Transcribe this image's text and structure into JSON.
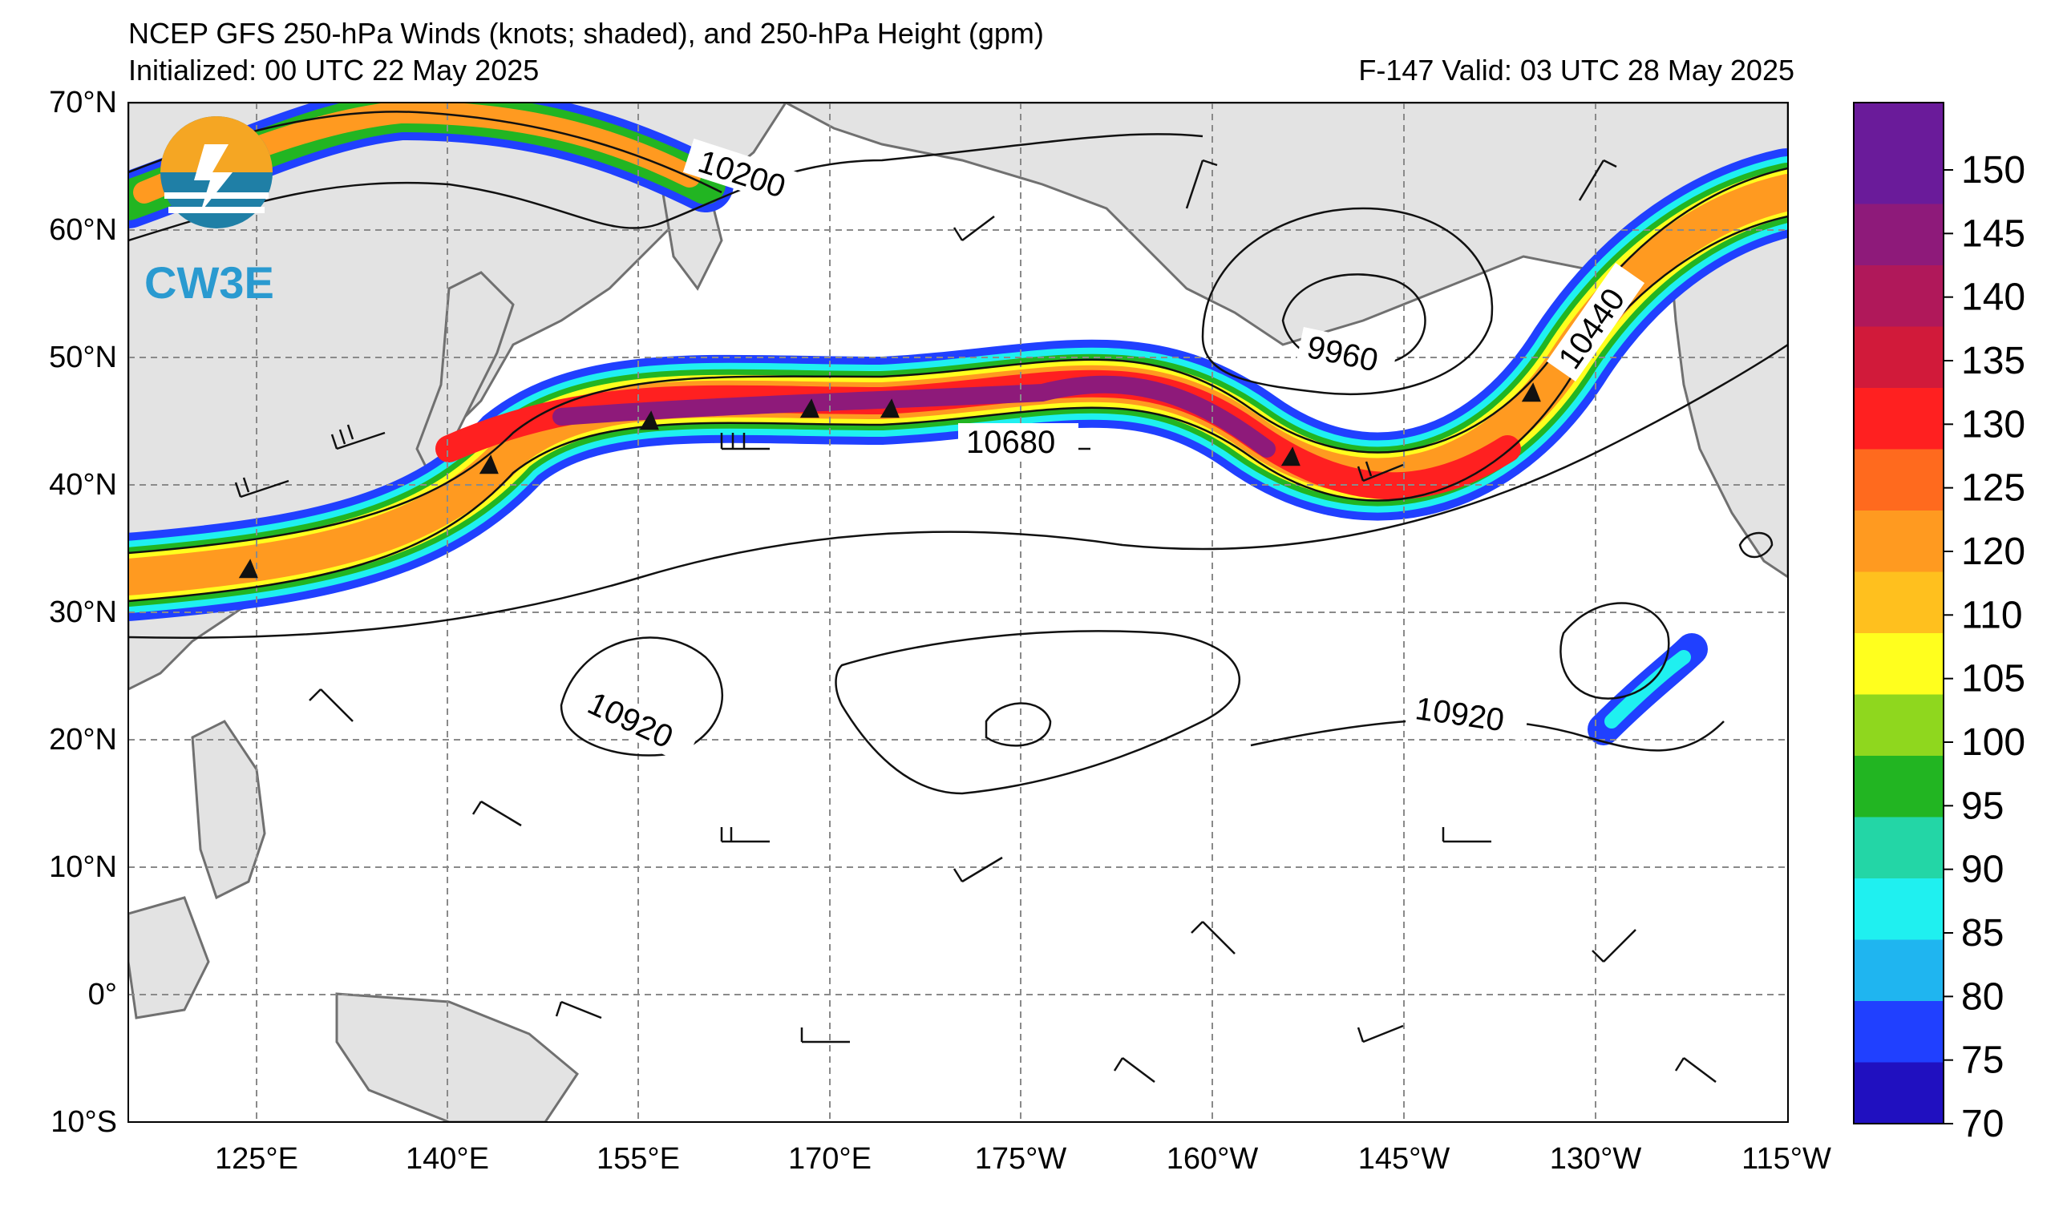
{
  "header": {
    "title": "NCEP GFS 250-hPa Winds (knots; shaded), and 250-hPa Height (gpm)",
    "initialized": "Initialized: 00 UTC 22 May 2025",
    "valid": "F-147  Valid: 03 UTC 28 May 2025"
  },
  "map": {
    "lat_labels": [
      "70°N",
      "60°N",
      "50°N",
      "40°N",
      "30°N",
      "20°N",
      "10°N",
      "0°",
      "10°S"
    ],
    "lon_labels": [
      "125°E",
      "140°E",
      "155°E",
      "170°E",
      "175°W",
      "160°W",
      "145°W",
      "130°W",
      "115°W"
    ],
    "contour_labels": [
      "10200",
      "9960",
      "10440",
      "10680",
      "10920",
      "10920"
    ],
    "logo_text": "CW3E",
    "colors": {
      "land": "#e3e3e3",
      "coast": "#707070",
      "grid": "#8a8a8a"
    }
  },
  "colorbar": {
    "labels": [
      "150",
      "145",
      "140",
      "135",
      "130",
      "125",
      "120",
      "110",
      "105",
      "100",
      "95",
      "90",
      "85",
      "80",
      "75",
      "70"
    ],
    "colors": [
      "#6a1b9a",
      "#8e1a7a",
      "#b0185a",
      "#d11a3a",
      "#ff2020",
      "#ff6a1e",
      "#ff9a20",
      "#ffc01e",
      "#ffff1e",
      "#8fd71e",
      "#22b522",
      "#23d6a6",
      "#1ff0f0",
      "#1fb5f0",
      "#2040ff",
      "#2010c0"
    ]
  }
}
